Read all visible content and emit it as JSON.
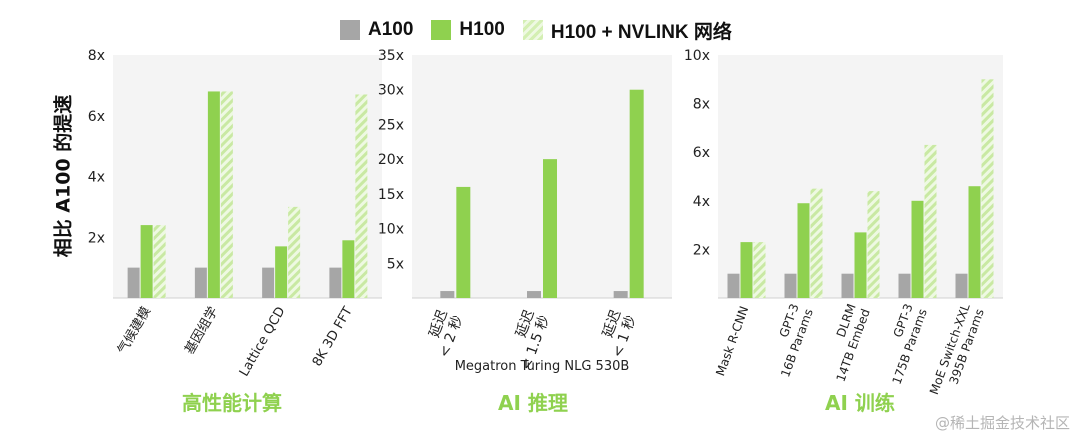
{
  "legend": [
    {
      "name": "A100",
      "color": "#a6a6a6",
      "pattern": "solid"
    },
    {
      "name": "H100",
      "color": "#8fd14f",
      "pattern": "solid"
    },
    {
      "name": "H100 + NVLINK 网络",
      "color": "#d4efb3",
      "pattern": "hatched"
    }
  ],
  "ylabel": "相比 A100 的提速",
  "watermark": "@稀土掘金技术社区",
  "chart_data": [
    {
      "type": "bar",
      "title": "高性能计算",
      "ylim": [
        0,
        8
      ],
      "yticks": [
        "2x",
        "4x",
        "6x",
        "8x"
      ],
      "ytick_values": [
        2,
        4,
        6,
        8
      ],
      "categories": [
        "气候建模",
        "基因组学",
        "Lattice QCD",
        "8K 3D FFT"
      ],
      "series": [
        {
          "name": "A100",
          "values": [
            1,
            1,
            1,
            1
          ]
        },
        {
          "name": "H100",
          "values": [
            2.4,
            6.8,
            1.7,
            1.9
          ]
        },
        {
          "name": "H100 + NVLINK 网络",
          "values": [
            2.4,
            6.8,
            3.0,
            6.7
          ]
        }
      ]
    },
    {
      "type": "bar",
      "title": "AI 推理",
      "xlabel": "Megatron Turing NLG 530B",
      "ylim": [
        0,
        35
      ],
      "yticks": [
        "5x",
        "10x",
        "15x",
        "20x",
        "25x",
        "30x",
        "35x"
      ],
      "ytick_values": [
        5,
        10,
        15,
        20,
        25,
        30,
        35
      ],
      "categories": [
        "延迟 < 2 秒",
        "延迟 < 1.5 秒",
        "延迟 < 1 秒"
      ],
      "series": [
        {
          "name": "A100",
          "values": [
            1,
            1,
            1
          ]
        },
        {
          "name": "H100",
          "values": [
            16,
            20,
            30
          ]
        }
      ]
    },
    {
      "type": "bar",
      "title": "AI 训练",
      "ylim": [
        0,
        10
      ],
      "yticks": [
        "2x",
        "4x",
        "6x",
        "8x",
        "10x"
      ],
      "ytick_values": [
        2,
        4,
        6,
        8,
        10
      ],
      "categories": [
        "Mask R-CNN",
        "GPT-3 16B Params",
        "DLRM 14TB Embed",
        "GPT-3 175B Params",
        "MoE Switch-XXL 395B Params"
      ],
      "series": [
        {
          "name": "A100",
          "values": [
            1,
            1,
            1,
            1,
            1
          ]
        },
        {
          "name": "H100",
          "values": [
            2.3,
            3.9,
            2.7,
            4.0,
            4.6
          ]
        },
        {
          "name": "H100 + NVLINK 网络",
          "values": [
            2.3,
            4.5,
            4.4,
            6.3,
            9.0
          ]
        }
      ]
    }
  ]
}
